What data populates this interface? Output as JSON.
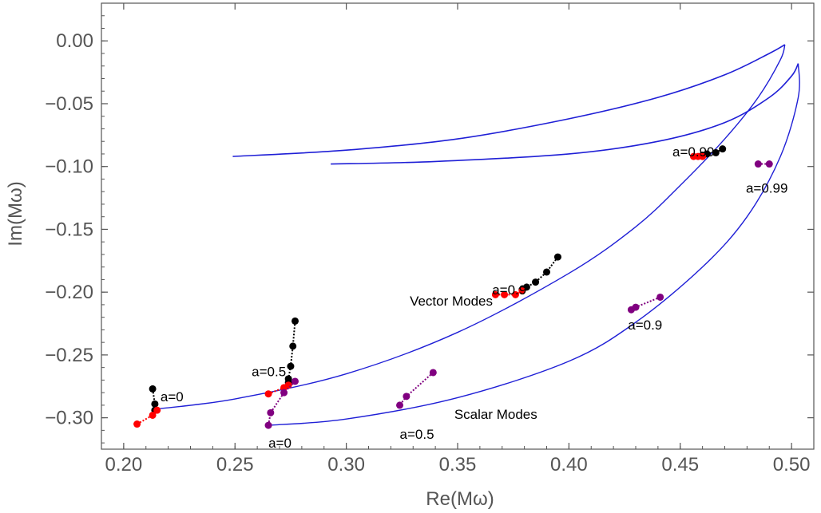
{
  "chart_data": {
    "type": "scatter",
    "xlabel": "Re(Mω)",
    "ylabel": "Im(Mω)",
    "xlim": [
      0.19,
      0.51
    ],
    "ylim": [
      -0.325,
      0.03
    ],
    "grid": false,
    "x_ticks": [
      {
        "value": 0.2,
        "label": "0.20"
      },
      {
        "value": 0.25,
        "label": "0.25"
      },
      {
        "value": 0.3,
        "label": "0.30"
      },
      {
        "value": 0.35,
        "label": "0.35"
      },
      {
        "value": 0.4,
        "label": "0.40"
      },
      {
        "value": 0.45,
        "label": "0.45"
      },
      {
        "value": 0.5,
        "label": "0.50"
      }
    ],
    "y_ticks": [
      {
        "value": 0.0,
        "label": "0.00"
      },
      {
        "value": -0.05,
        "label": "−0.05"
      },
      {
        "value": -0.1,
        "label": "−0.10"
      },
      {
        "value": -0.15,
        "label": "−0.15"
      },
      {
        "value": -0.2,
        "label": "−0.20"
      },
      {
        "value": -0.25,
        "label": "−0.25"
      },
      {
        "value": -0.3,
        "label": "−0.30"
      }
    ],
    "curves": [
      {
        "color": "#1f1fd6",
        "width": 1.6,
        "points": [
          [
            0.249,
            -0.092
          ],
          [
            0.3,
            -0.087
          ],
          [
            0.35,
            -0.078
          ],
          [
            0.4,
            -0.062
          ],
          [
            0.44,
            -0.045
          ],
          [
            0.47,
            -0.027
          ],
          [
            0.49,
            -0.01
          ],
          [
            0.497,
            -0.003
          ]
        ]
      },
      {
        "color": "#1f1fd6",
        "width": 1.6,
        "points": [
          [
            0.293,
            -0.098
          ],
          [
            0.34,
            -0.096
          ],
          [
            0.4,
            -0.09
          ],
          [
            0.44,
            -0.08
          ],
          [
            0.47,
            -0.065
          ],
          [
            0.49,
            -0.045
          ],
          [
            0.5,
            -0.028
          ],
          [
            0.503,
            -0.018
          ]
        ]
      },
      {
        "color": "#1f1fd6",
        "width": 1.4,
        "points": [
          [
            0.215,
            -0.293
          ],
          [
            0.25,
            -0.285
          ],
          [
            0.3,
            -0.265
          ],
          [
            0.35,
            -0.232
          ],
          [
            0.4,
            -0.185
          ],
          [
            0.43,
            -0.148
          ],
          [
            0.45,
            -0.115
          ],
          [
            0.47,
            -0.078
          ],
          [
            0.485,
            -0.045
          ],
          [
            0.495,
            -0.015
          ],
          [
            0.497,
            -0.003
          ]
        ]
      },
      {
        "color": "#1f1fd6",
        "width": 1.4,
        "points": [
          [
            0.265,
            -0.306
          ],
          [
            0.3,
            -0.301
          ],
          [
            0.35,
            -0.284
          ],
          [
            0.4,
            -0.255
          ],
          [
            0.43,
            -0.224
          ],
          [
            0.46,
            -0.18
          ],
          [
            0.48,
            -0.14
          ],
          [
            0.495,
            -0.092
          ],
          [
            0.503,
            -0.045
          ],
          [
            0.503,
            -0.018
          ]
        ]
      }
    ],
    "tracks": [
      {
        "color": "#000000",
        "points": [
          [
            0.213,
            -0.277
          ],
          [
            0.214,
            -0.289
          ],
          [
            0.214,
            -0.294
          ]
        ]
      },
      {
        "color": "#ff0000",
        "points": [
          [
            0.206,
            -0.305
          ],
          [
            0.213,
            -0.298
          ],
          [
            0.215,
            -0.294
          ]
        ]
      },
      {
        "color": "#000000",
        "points": [
          [
            0.277,
            -0.223
          ],
          [
            0.276,
            -0.243
          ],
          [
            0.275,
            -0.259
          ],
          [
            0.274,
            -0.269
          ],
          [
            0.274,
            -0.272
          ]
        ]
      },
      {
        "color": "#ff0000",
        "points": [
          [
            0.265,
            -0.281
          ],
          [
            0.272,
            -0.276
          ],
          [
            0.274,
            -0.274
          ]
        ]
      },
      {
        "color": "#800080",
        "points": [
          [
            0.277,
            -0.271
          ],
          [
            0.272,
            -0.28
          ],
          [
            0.266,
            -0.296
          ],
          [
            0.265,
            -0.306
          ]
        ]
      },
      {
        "color": "#800080",
        "points": [
          [
            0.339,
            -0.264
          ],
          [
            0.327,
            -0.283
          ],
          [
            0.324,
            -0.29
          ]
        ]
      },
      {
        "color": "#000000",
        "points": [
          [
            0.395,
            -0.172
          ],
          [
            0.39,
            -0.184
          ],
          [
            0.385,
            -0.192
          ],
          [
            0.381,
            -0.196
          ],
          [
            0.379,
            -0.198
          ]
        ]
      },
      {
        "color": "#ff0000",
        "points": [
          [
            0.367,
            -0.202
          ],
          [
            0.371,
            -0.202
          ],
          [
            0.376,
            -0.202
          ],
          [
            0.379,
            -0.199
          ]
        ]
      },
      {
        "color": "#800080",
        "points": [
          [
            0.441,
            -0.204
          ],
          [
            0.43,
            -0.212
          ],
          [
            0.428,
            -0.214
          ]
        ]
      },
      {
        "color": "#000000",
        "points": [
          [
            0.469,
            -0.086
          ],
          [
            0.466,
            -0.089
          ],
          [
            0.462,
            -0.09
          ],
          [
            0.46,
            -0.091
          ]
        ]
      },
      {
        "color": "#ff0000",
        "points": [
          [
            0.456,
            -0.092
          ],
          [
            0.458,
            -0.092
          ],
          [
            0.46,
            -0.092
          ]
        ]
      },
      {
        "color": "#800080",
        "points": [
          [
            0.49,
            -0.098
          ],
          [
            0.485,
            -0.098
          ]
        ]
      }
    ],
    "annotations": [
      {
        "text": "a=0",
        "x": 0.2165,
        "y": -0.283
      },
      {
        "text": "a=0",
        "x": 0.265,
        "y": -0.32
      },
      {
        "text": "a=0.5",
        "x": 0.2575,
        "y": -0.263
      },
      {
        "text": "a=0.5",
        "x": 0.324,
        "y": -0.313
      },
      {
        "text": "a=0.9",
        "x": 0.3655,
        "y": -0.198
      },
      {
        "text": "a=0.9",
        "x": 0.4265,
        "y": -0.226
      },
      {
        "text": "a=0.99",
        "x": 0.4465,
        "y": -0.088
      },
      {
        "text": "a=0.99",
        "x": 0.4795,
        "y": -0.117
      },
      {
        "text": "Vector Modes",
        "x": 0.3285,
        "y": -0.207
      },
      {
        "text": "Scalar Modes",
        "x": 0.3485,
        "y": -0.297
      }
    ]
  }
}
